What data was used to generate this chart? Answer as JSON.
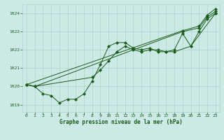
{
  "background_color": "#cce9e5",
  "grid_color": "#aad4cf",
  "line_color": "#1a5c1a",
  "xlabel": "Graphe pression niveau de la mer (hPa)",
  "yticks": [
    1019,
    1020,
    1021,
    1022,
    1023,
    1024
  ],
  "xticks": [
    0,
    1,
    2,
    3,
    4,
    5,
    6,
    7,
    8,
    9,
    10,
    11,
    12,
    13,
    14,
    15,
    16,
    17,
    18,
    19,
    20,
    21,
    22,
    23
  ],
  "ylim": [
    1018.6,
    1024.5
  ],
  "xlim": [
    -0.5,
    23.5
  ],
  "line1_x": [
    0,
    1,
    2,
    3,
    4,
    5,
    6,
    7,
    8,
    9,
    10,
    11,
    12,
    13,
    14,
    15,
    16,
    17,
    18,
    20,
    23
  ],
  "line1_y": [
    1020.1,
    1020.0,
    1019.6,
    1019.5,
    1019.1,
    1019.3,
    1019.3,
    1019.6,
    1020.3,
    1021.2,
    1022.2,
    1022.4,
    1022.4,
    1022.1,
    1022.0,
    1022.1,
    1021.9,
    1021.9,
    1021.9,
    1022.2,
    1024.0
  ],
  "line2_x": [
    0,
    1,
    8,
    9,
    10,
    11,
    12,
    13,
    14,
    15,
    16,
    17,
    18,
    19,
    20,
    21,
    22,
    23
  ],
  "line2_y": [
    1020.1,
    1020.0,
    1020.5,
    1020.9,
    1021.4,
    1021.9,
    1022.2,
    1022.0,
    1021.9,
    1022.0,
    1022.0,
    1021.9,
    1022.0,
    1022.9,
    1022.2,
    1023.0,
    1023.7,
    1024.0
  ],
  "line3_x": [
    0,
    1,
    19,
    21,
    22,
    23
  ],
  "line3_y": [
    1020.1,
    1020.0,
    1023.0,
    1023.2,
    1023.8,
    1024.1
  ],
  "line4_x": [
    0,
    19,
    21,
    22,
    23
  ],
  "line4_y": [
    1020.1,
    1023.05,
    1023.3,
    1023.9,
    1024.25
  ]
}
